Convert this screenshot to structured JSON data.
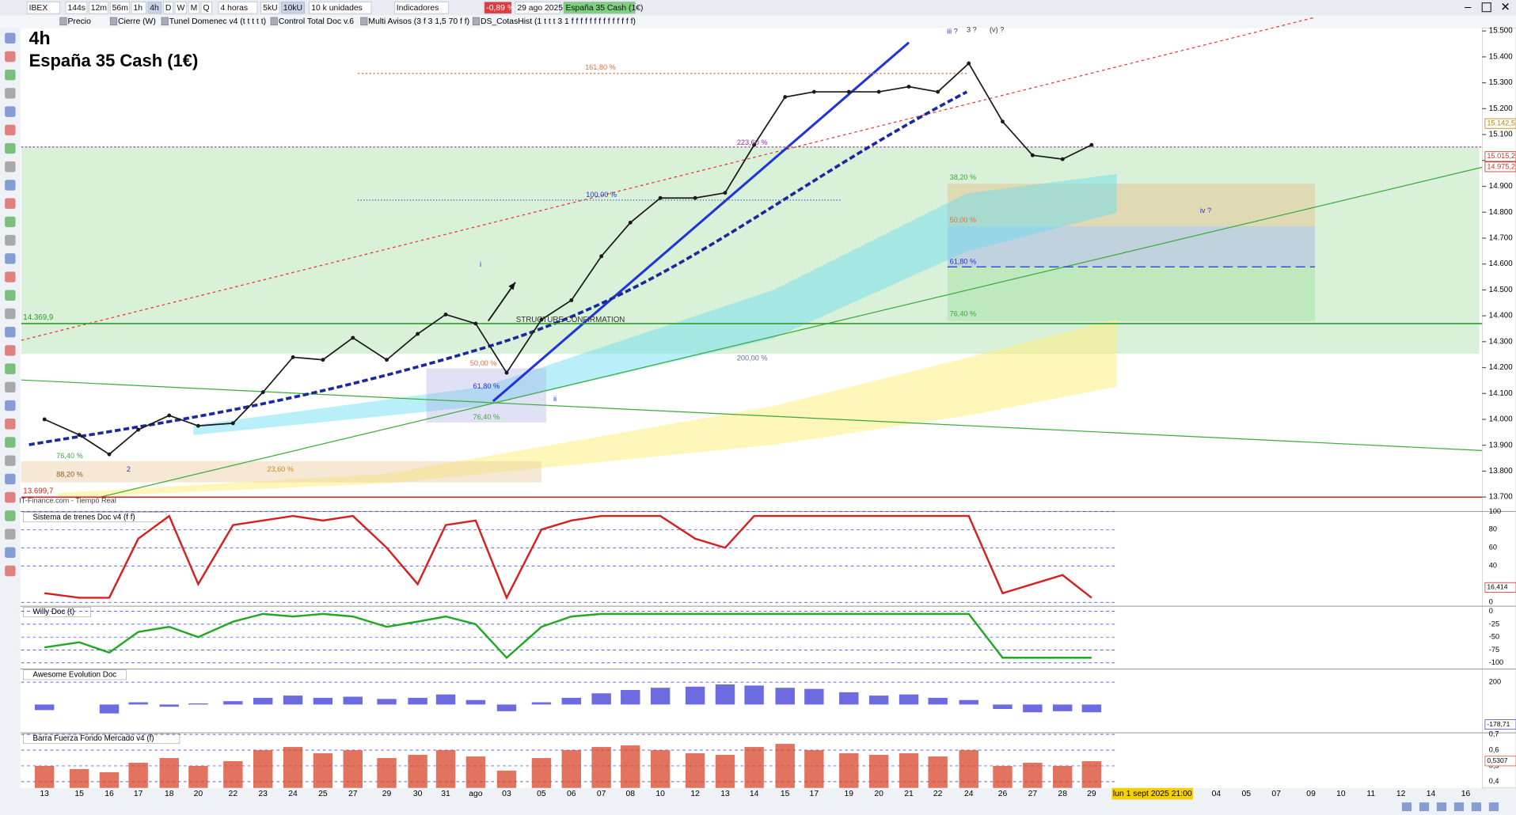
{
  "toolbar": [
    "IBEX",
    "144s",
    "12m",
    "56m",
    "1h",
    "4h",
    "D",
    "W",
    "M",
    "Q",
    "4 horas",
    "5kU",
    "10kU",
    "10 k unidades",
    "Indicadores",
    "-0,89 %",
    "29 ago 2025",
    "España 35 Cash (1€)"
  ],
  "indicators": [
    "Precio",
    "Cierre (W)",
    "Tunel Domenec v4 (t t t t t)",
    "Control Total Doc v.6",
    "Multi Avisos (3 f 3 1,5 70 f f)",
    "DS_CotasHist (1 t t t 3 1 f f f f f f f f f f f f f f)"
  ],
  "chart_data": {
    "type": "line",
    "title": "4h",
    "subtitle": "España 35 Cash (1€)",
    "x": [
      "13",
      "15",
      "16",
      "17",
      "18",
      "20",
      "22",
      "23",
      "24",
      "25",
      "27",
      "29",
      "30",
      "31",
      "ago",
      "03",
      "05",
      "06",
      "07",
      "08",
      "10",
      "12",
      "13",
      "14",
      "15",
      "17",
      "19",
      "20",
      "21",
      "22",
      "24",
      "26",
      "27",
      "28",
      "29",
      "lun 1 sept 2025 21:00",
      "04",
      "05",
      "07",
      "09",
      "10",
      "11",
      "12",
      "14",
      "16"
    ],
    "series": [
      {
        "name": "Precio",
        "color": "#1a1a1a",
        "values": [
          14000,
          13940,
          13865,
          13960,
          14015,
          13975,
          13985,
          14105,
          14240,
          14230,
          14315,
          14230,
          14330,
          14405,
          14370,
          14180,
          14385,
          14460,
          14630,
          14760,
          14855,
          14855,
          14875,
          15060,
          15245,
          15265,
          15265,
          15265,
          15285,
          15265,
          15375,
          15150,
          15020,
          15005,
          15060,
          null,
          null,
          null,
          null,
          null,
          null,
          null,
          null,
          null,
          null
        ]
      }
    ],
    "ylim": [
      13678,
      15545
    ],
    "yticks": [
      {
        "value": 15500,
        "label": "15.500"
      },
      {
        "value": 15400,
        "label": "15.400"
      },
      {
        "value": 15300,
        "label": "15.300"
      },
      {
        "value": 15200,
        "label": "15.200"
      },
      {
        "value": 15100,
        "label": "15.100"
      },
      {
        "value": 15000,
        "label": "15.000"
      },
      {
        "value": 14900,
        "label": "14.900"
      },
      {
        "value": 14800,
        "label": "14.800"
      },
      {
        "value": 14700,
        "label": "14.700"
      },
      {
        "value": 14600,
        "label": "14.600"
      },
      {
        "value": 14500,
        "label": "14.500"
      },
      {
        "value": 14400,
        "label": "14.400"
      },
      {
        "value": 14300,
        "label": "14.300"
      },
      {
        "value": 14200,
        "label": "14.200"
      },
      {
        "value": 14100,
        "label": "14.100"
      },
      {
        "value": 14000,
        "label": "14.000"
      },
      {
        "value": 13900,
        "label": "13.900"
      },
      {
        "value": 13800,
        "label": "13.800"
      },
      {
        "value": 13700,
        "label": "13.700"
      }
    ],
    "levels": [
      {
        "value": 14369.9,
        "label": "14.369,9",
        "color": "#2e9d2e"
      },
      {
        "value": 13699.7,
        "label": "13.699,7",
        "color": "#d62020"
      }
    ],
    "price_tags": [
      {
        "value": 15142.5,
        "label": "15.142,5",
        "color": "#b8860b"
      },
      {
        "value": 15015.2,
        "label": "15.015,2",
        "color": "#c0392b"
      },
      {
        "value": 14975.2,
        "label": "14.975,2",
        "color": "#c0392b"
      }
    ],
    "annotations": [
      "161,80 %",
      "223,60 %",
      "100,00 %",
      "38,20 %",
      "50,00 %",
      "61,80 %",
      "76,40 %",
      "200,00 %",
      "50,00 %",
      "61,80 %",
      "76,40 %",
      "23,60 %",
      "88,20 %",
      "76,40 %",
      "STRUCTURE CONFIRMATION",
      "iii ?",
      "3 ?",
      "(v) ?",
      "iv ?",
      "i",
      "ii",
      "2",
      "IT-Finance.com - Tiempo Real"
    ]
  },
  "panels": [
    {
      "type": "line",
      "title": "Sistema de trenes Doc v4 (f f)",
      "color": "#d62020",
      "ylim": [
        0,
        100
      ],
      "yticks": [
        100,
        80,
        60,
        40,
        0
      ],
      "values": [
        10,
        5,
        5,
        70,
        95,
        20,
        85,
        90,
        95,
        90,
        95,
        60,
        20,
        85,
        90,
        5,
        80,
        90,
        95,
        95,
        95,
        70,
        60,
        95,
        95,
        95,
        95,
        95,
        95,
        95,
        95,
        10,
        20,
        30,
        5,
        null,
        null,
        null,
        null,
        null,
        null,
        null,
        null,
        null,
        null
      ],
      "tag": {
        "value": 16.414,
        "label": "16,414"
      }
    },
    {
      "type": "line",
      "title": "Willy Doc (t)",
      "color": "#22a822",
      "ylim": [
        -110,
        10
      ],
      "yticks": [
        0,
        -25,
        -50,
        -75,
        -100
      ],
      "values": [
        -70,
        -60,
        -80,
        -40,
        -30,
        -50,
        -20,
        -5,
        -10,
        -5,
        -10,
        -30,
        -20,
        -10,
        -25,
        -90,
        -30,
        -10,
        -5,
        -5,
        -5,
        -5,
        -5,
        -5,
        -5,
        -5,
        -5,
        -5,
        -5,
        -5,
        -5,
        -90,
        -90,
        -90,
        -90,
        null,
        null,
        null,
        null,
        null,
        null,
        null,
        null,
        null,
        null
      ]
    },
    {
      "type": "bar",
      "title": "Awesome Evolution Doc",
      "color": "#3b3bd6",
      "ylim": [
        -245,
        318
      ],
      "yticks": [
        200
      ],
      "values": [
        -50,
        0,
        -80,
        20,
        -20,
        10,
        30,
        60,
        80,
        60,
        70,
        50,
        60,
        90,
        40,
        -60,
        20,
        60,
        100,
        130,
        150,
        160,
        180,
        170,
        150,
        140,
        110,
        80,
        90,
        60,
        40,
        -40,
        -70,
        -60,
        -70,
        null,
        null,
        null,
        null,
        null,
        null,
        null,
        null,
        null,
        null
      ],
      "tag": {
        "value": -178.71,
        "label": "-178,71"
      }
    },
    {
      "type": "bar",
      "title": "Barra Fuerza Fondo Mercado v4 (f)",
      "color": "#d8452a",
      "ylim": [
        0.36,
        0.71
      ],
      "yticks": [
        {
          "value": 0.7,
          "label": "0,7"
        },
        {
          "value": 0.6,
          "label": "0,6"
        },
        {
          "value": 0.5,
          "label": "0,5"
        },
        {
          "value": 0.4,
          "label": "0,4"
        }
      ],
      "values": [
        0.5,
        0.48,
        0.46,
        0.52,
        0.55,
        0.5,
        0.53,
        0.6,
        0.62,
        0.58,
        0.6,
        0.55,
        0.57,
        0.6,
        0.56,
        0.47,
        0.55,
        0.6,
        0.62,
        0.63,
        0.6,
        0.58,
        0.57,
        0.62,
        0.64,
        0.6,
        0.58,
        0.57,
        0.58,
        0.56,
        0.6,
        0.5,
        0.52,
        0.5,
        0.53,
        null,
        null,
        null,
        null,
        null,
        null,
        null,
        null,
        null,
        null
      ],
      "tag": {
        "value": 0.5307,
        "label": "0,5307"
      }
    }
  ]
}
